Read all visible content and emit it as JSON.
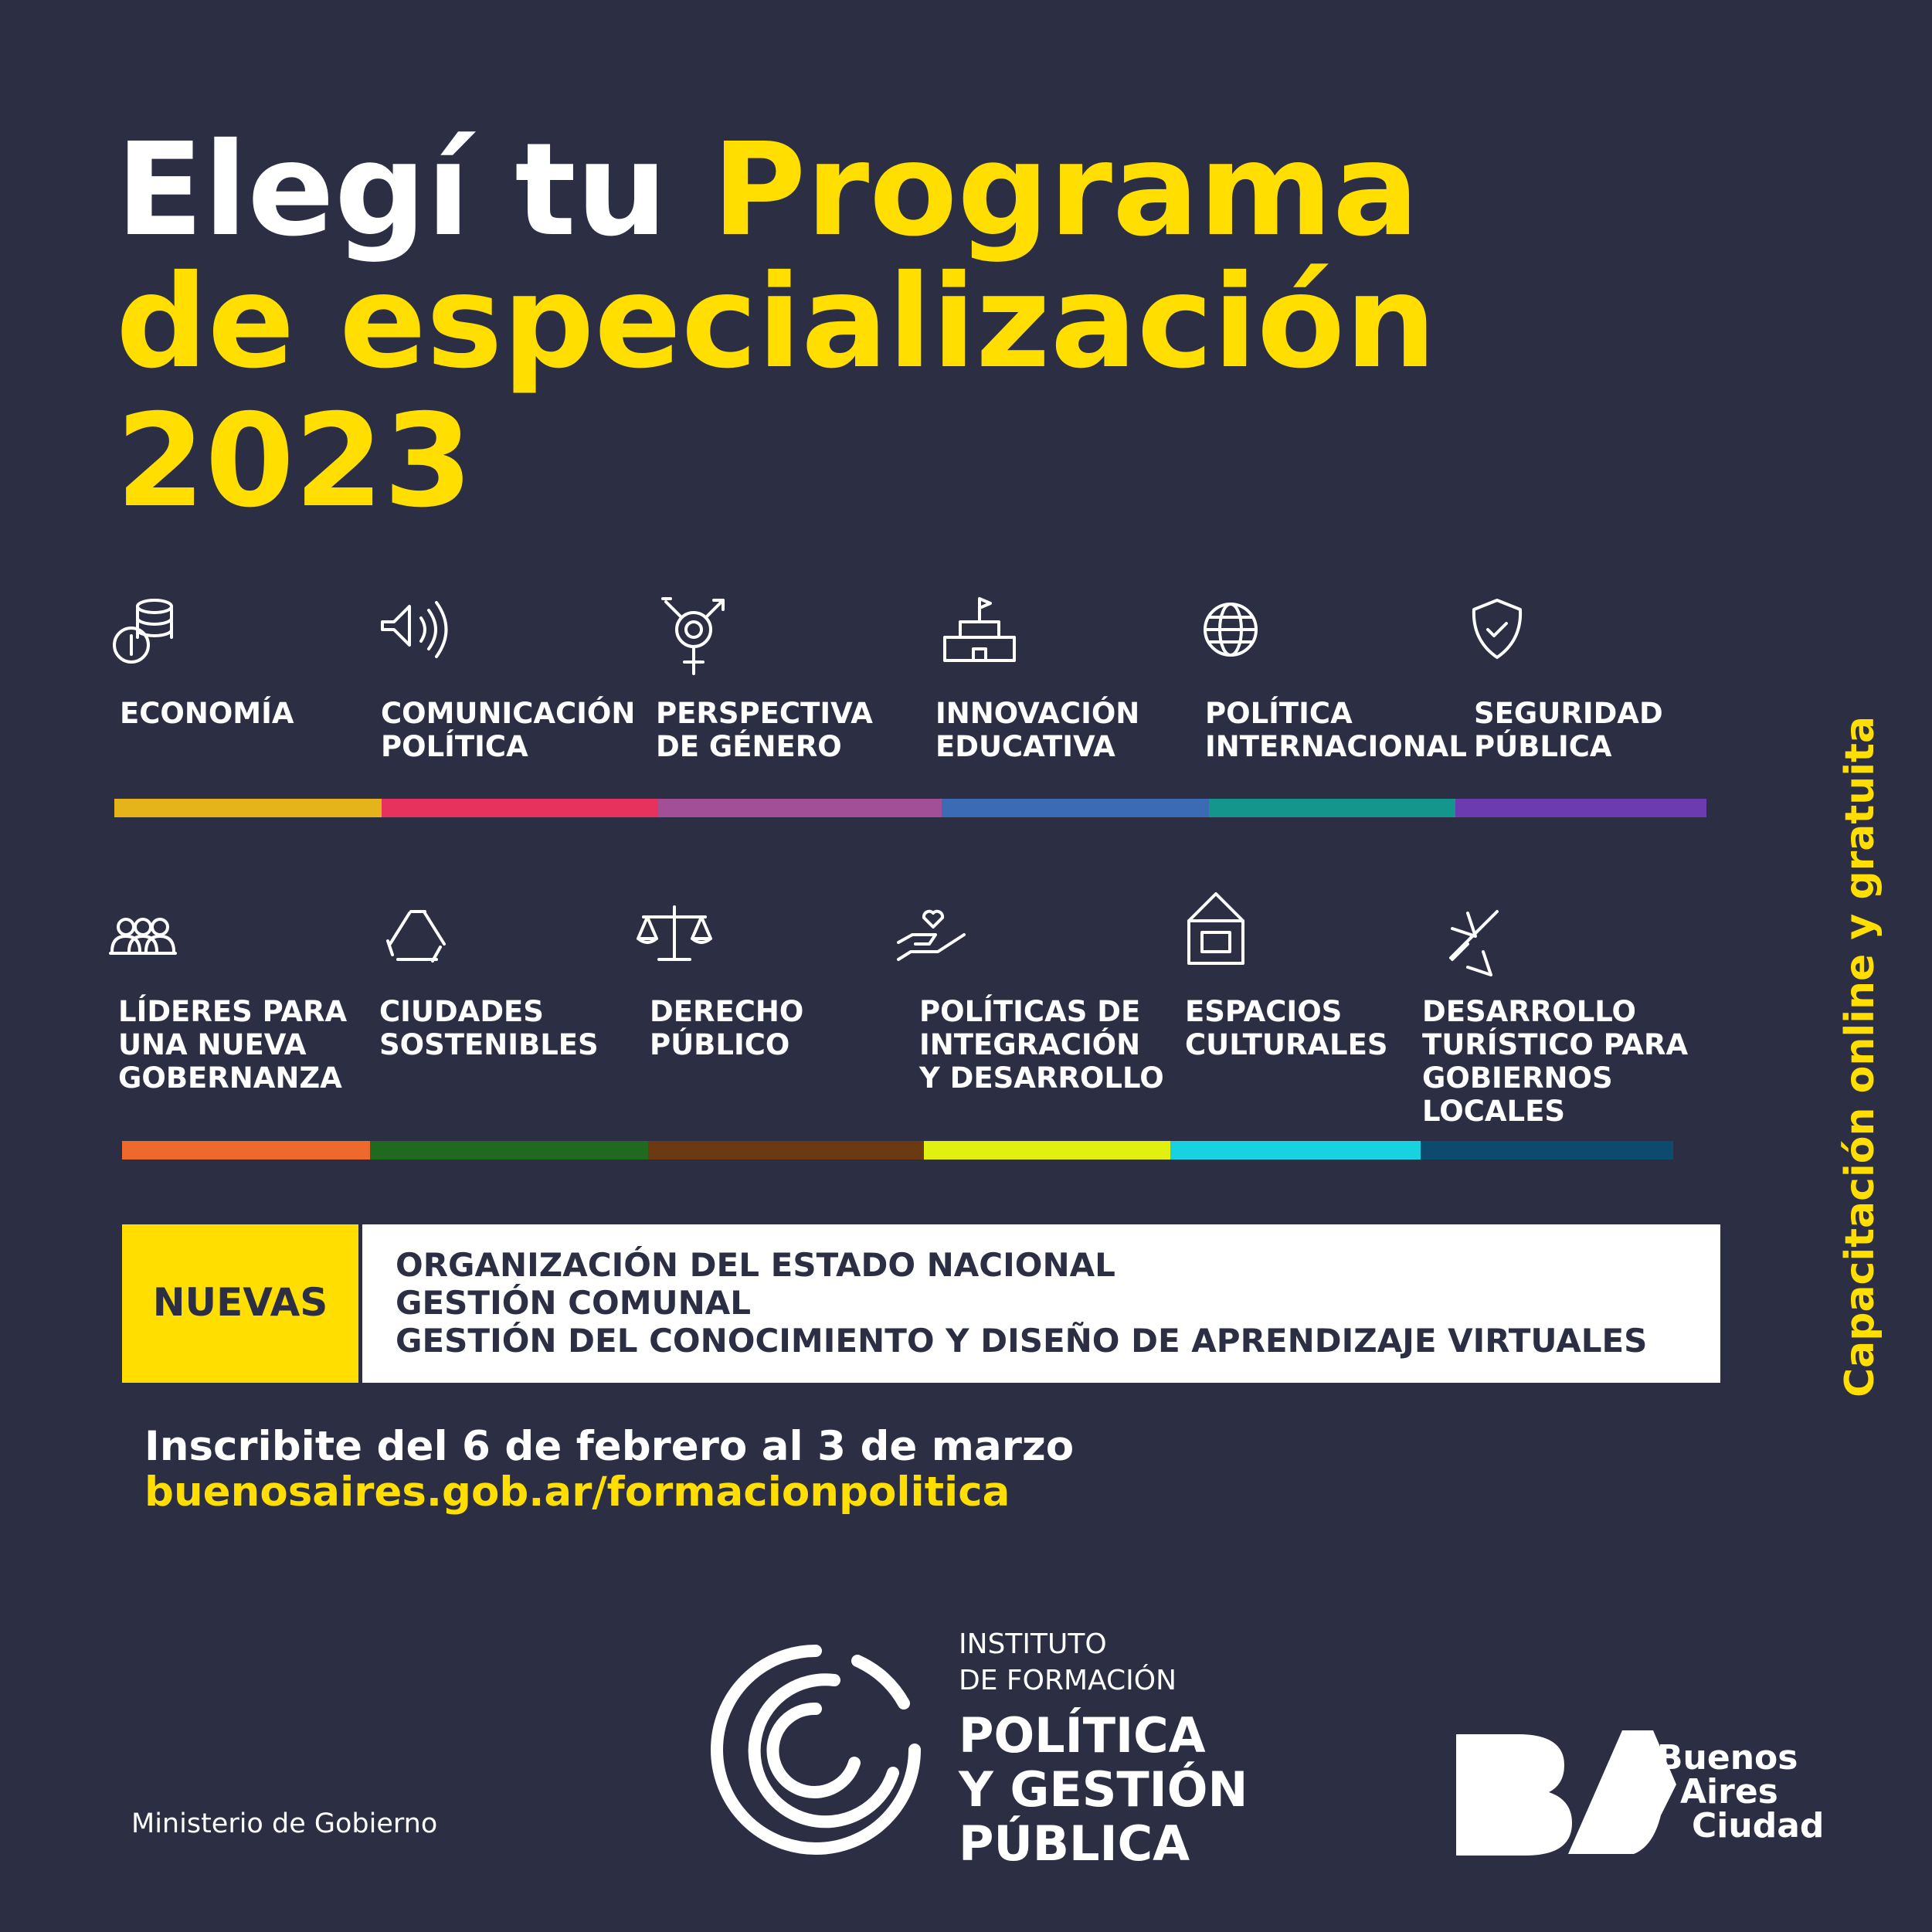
{
  "title": {
    "line1_white": "Elegí tu",
    "line1_yellow": "Programa",
    "line2": "de especialización",
    "line3": "2023"
  },
  "programs_row1": [
    {
      "label": [
        "ECONOMÍA"
      ],
      "color": "#e5b31a"
    },
    {
      "label": [
        "COMUNICACIÓN",
        "POLÍTICA"
      ],
      "color": "#e8325e"
    },
    {
      "label": [
        "PERSPECTIVA",
        "DE GÉNERO"
      ],
      "color": "#a24f98"
    },
    {
      "label": [
        "INNOVACIÓN",
        "EDUCATIVA"
      ],
      "color": "#3a6bb4"
    },
    {
      "label": [
        "POLÍTICA",
        "INTERNACIONAL"
      ],
      "color": "#15968c"
    },
    {
      "label": [
        "SEGURIDAD",
        "PÚBLICA"
      ],
      "color": "#6d3bb0"
    }
  ],
  "programs_row2": [
    {
      "label": [
        "LÍDERES PARA",
        "UNA NUEVA",
        "GOBERNANZA"
      ],
      "color": "#ee6a2c"
    },
    {
      "label": [
        "CIUDADES",
        "SOSTENIBLES"
      ],
      "color": "#1f6a1e"
    },
    {
      "label": [
        "DERECHO",
        "PÚBLICO"
      ],
      "color": "#6b3a12"
    },
    {
      "label": [
        "POLÍTICAS DE",
        "INTEGRACIÓN",
        "Y DESARROLLO"
      ],
      "color": "#e1f00f"
    },
    {
      "label": [
        "ESPACIOS",
        "CULTURALES"
      ],
      "color": "#17d3e0"
    },
    {
      "label": [
        "DESARROLLO",
        "TURÍSTICO PARA",
        "GOBIERNOS",
        "LOCALES"
      ],
      "color": "#0c4a6e"
    }
  ],
  "nuevas": {
    "label": "NUEVAS",
    "items": [
      "ORGANIZACIÓN DEL ESTADO NACIONAL",
      "GESTIÓN COMUNAL",
      "GESTIÓN DEL CONOCIMIENTO Y DISEÑO DE APRENDIZAJE VIRTUALES"
    ]
  },
  "inscription": {
    "dates": "Inscribite del 6 de febrero al 3 de marzo",
    "url": "buenosaires.gob.ar/formacionpolitica"
  },
  "side_text": "Capacitación online y gratuita",
  "footer": {
    "ministry": "Ministerio de Gobierno",
    "institute_small": [
      "INSTITUTO",
      "DE FORMACIÓN"
    ],
    "institute_big": [
      "POLÍTICA",
      "Y GESTIÓN",
      "PÚBLICA"
    ],
    "ba_text": [
      "Buenos",
      "Aires",
      "Ciudad"
    ]
  }
}
